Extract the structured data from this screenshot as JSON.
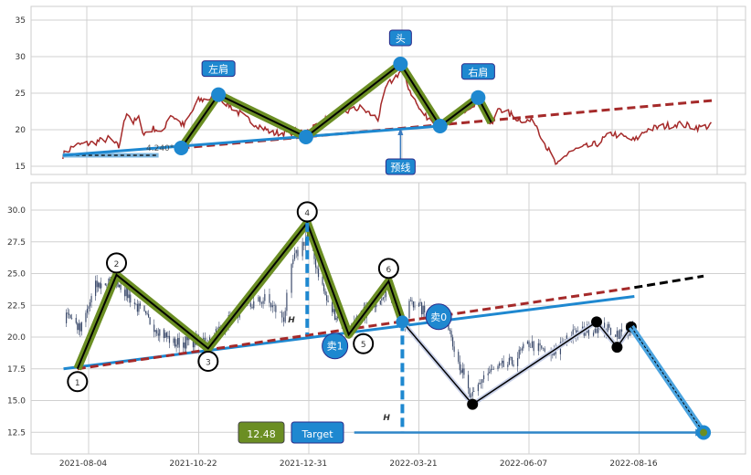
{
  "chart_data": [
    {
      "panel": "overview",
      "type": "line",
      "ylim": [
        13.8,
        36.9
      ],
      "yticks": [
        15,
        20,
        25,
        30,
        35
      ],
      "grid": true,
      "colors": {
        "price": "#a52a2a",
        "pattern": "#6b8e23",
        "neckline": "#1e88d0",
        "trend": "#a52a2a",
        "marker": "#1e88d0"
      },
      "price_path": [
        [
          "2021-04-29",
          16.5
        ],
        [
          "2021-05-07",
          17.8
        ],
        [
          "2021-05-21",
          18.2
        ],
        [
          "2021-06-03",
          18.8
        ],
        [
          "2021-06-10",
          17.6
        ],
        [
          "2021-06-16",
          22.5
        ],
        [
          "2021-06-21",
          21.0
        ],
        [
          "2021-06-25",
          21.5
        ],
        [
          "2021-06-29",
          19.5
        ],
        [
          "2021-07-07",
          20.2
        ],
        [
          "2021-07-13",
          19.5
        ],
        [
          "2021-07-18",
          22.3
        ],
        [
          "2021-07-29",
          20.5
        ],
        [
          "2021-08-09",
          24.0
        ],
        [
          "2021-08-24",
          24.5
        ],
        [
          "2021-09-14",
          21.5
        ],
        [
          "2021-10-04",
          19.5
        ],
        [
          "2021-10-28",
          19.8
        ],
        [
          "2021-11-16",
          22.0
        ],
        [
          "2021-12-03",
          23.0
        ],
        [
          "2021-12-15",
          21.5
        ],
        [
          "2021-12-21",
          26.0
        ],
        [
          "2021-12-30",
          28.0
        ],
        [
          "2022-01-14",
          22.5
        ],
        [
          "2022-01-29",
          20.5
        ],
        [
          "2022-02-10",
          22.0
        ],
        [
          "2022-02-27",
          24.0
        ],
        [
          "2022-03-09",
          20.5
        ],
        [
          "2022-03-15",
          23.0
        ],
        [
          "2022-03-29",
          21.5
        ],
        [
          "2022-04-11",
          21.0
        ],
        [
          "2022-04-17",
          18.5
        ],
        [
          "2022-04-27",
          15.0
        ],
        [
          "2022-05-06",
          17.0
        ],
        [
          "2022-05-26",
          18.0
        ],
        [
          "2022-06-07",
          19.5
        ],
        [
          "2022-06-22",
          18.5
        ],
        [
          "2022-06-30",
          20.0
        ],
        [
          "2022-07-20",
          20.8
        ],
        [
          "2022-08-04",
          20.3
        ],
        [
          "2022-08-13",
          20.6
        ]
      ],
      "pattern_points": [
        {
          "date": "2021-07-27",
          "value": 17.5,
          "label": ""
        },
        {
          "date": "2021-08-24",
          "value": 24.8,
          "label": "左肩"
        },
        {
          "date": "2021-10-28",
          "value": 19.0,
          "label": ""
        },
        {
          "date": "2021-12-30",
          "value": 29.0,
          "label": "头"
        },
        {
          "date": "2022-01-29",
          "value": 20.5,
          "label": ""
        },
        {
          "date": "2022-02-27",
          "value": 24.4,
          "label": "右肩"
        }
      ],
      "pattern_end": {
        "date": "2022-03-09",
        "value": 21.0
      },
      "neckline": {
        "from": [
          "2021-04-29",
          16.5
        ],
        "to": [
          "2022-01-29",
          20.5
        ]
      },
      "baseline": {
        "from": [
          "2021-04-29",
          16.5
        ],
        "to": [
          "2021-07-10",
          16.5
        ]
      },
      "trendline": {
        "from": [
          "2021-07-27",
          17.5
        ],
        "to": [
          "2022-08-13",
          24.0
        ]
      },
      "neckline_label": {
        "text": "预线",
        "date": "2021-12-30",
        "value": 20.25
      },
      "angle_label": "4.240°"
    },
    {
      "panel": "detail",
      "type": "candlestick",
      "ylim": [
        10.85,
        32.16
      ],
      "yticks": [
        12.5,
        15.0,
        17.5,
        20.0,
        22.5,
        25.0,
        27.5,
        30.0
      ],
      "ytick_labels": [
        "12.5",
        "15.0",
        "17.5",
        "20.0",
        "22.5",
        "25.0",
        "27.5",
        "30.0"
      ],
      "xticks": [
        "2021-08-04",
        "2021-10-22",
        "2021-12-31",
        "2022-03-21",
        "2022-06-07",
        "2022-08-16"
      ],
      "grid": true,
      "candles_start": "2021-07-18",
      "colors": {
        "candle": "#3b4a6b",
        "pattern": "#6b8e23",
        "neckline": "#1e88d0",
        "trend": "#a52a2a",
        "target_box": "#6b8e23",
        "label_box": "#1e88d0"
      },
      "pattern_points": [
        {
          "date": "2021-07-27",
          "value": 17.5,
          "label": "1"
        },
        {
          "date": "2021-08-24",
          "value": 24.9,
          "label": "2"
        },
        {
          "date": "2021-10-28",
          "value": 19.1,
          "label": "3"
        },
        {
          "date": "2021-12-30",
          "value": 29.0,
          "label": "4"
        },
        {
          "date": "2022-01-29",
          "value": 20.2,
          "label": "5"
        },
        {
          "date": "2022-02-27",
          "value": 24.4,
          "label": "6"
        }
      ],
      "breakout": {
        "date": "2022-03-09",
        "value": 21.2
      },
      "post_path": [
        {
          "date": "2022-04-28",
          "value": 14.7
        },
        {
          "date": "2022-07-20",
          "value": 21.2
        },
        {
          "date": "2022-08-02",
          "value": 19.2
        },
        {
          "date": "2022-08-11",
          "value": 20.8
        }
      ],
      "projection_target": {
        "date": "2022-09-26",
        "value": 12.48
      },
      "neckline": {
        "from": [
          "2021-07-17",
          17.5
        ],
        "to": [
          "2022-08-13",
          23.2
        ]
      },
      "trendline": {
        "from": [
          "2021-07-27",
          17.5
        ],
        "to": [
          "2022-08-13",
          23.9
        ]
      },
      "trend_extension": {
        "from": [
          "2022-08-13",
          23.9
        ],
        "to": [
          "2022-09-26",
          24.8
        ]
      },
      "height_lines": [
        {
          "date": "2021-12-30",
          "from": 29.0,
          "to": 20.2,
          "label": "H"
        },
        {
          "date": "2022-03-09",
          "from": 21.2,
          "to": 12.48,
          "label": "H"
        }
      ],
      "signals": [
        {
          "date": "2022-01-23",
          "value": 19.3,
          "label": "卖1"
        },
        {
          "date": "2022-04-04",
          "value": 21.6,
          "label": "卖0"
        }
      ],
      "target_arrow": {
        "from": [
          "2022-02-02",
          12.48
        ],
        "to": [
          "2022-09-22",
          12.48
        ]
      },
      "target_value": "12.48",
      "target_label": "Target"
    }
  ]
}
